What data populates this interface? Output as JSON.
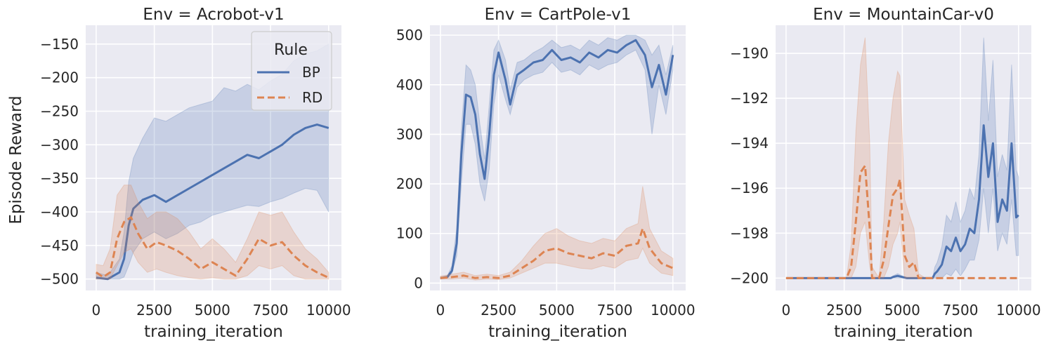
{
  "figure": {
    "ylabel": "Episode Reward",
    "legend": {
      "title": "Rule",
      "placement": "top-right of first panel",
      "entries": [
        {
          "label": "BP",
          "color": "#4c72b0",
          "dash": "solid"
        },
        {
          "label": "RD",
          "color": "#dd8452",
          "dash": "dashed"
        }
      ]
    },
    "colors": {
      "BP": "#4c72b0",
      "RD": "#dd8452",
      "background": "#eaeaf2",
      "grid": "#ffffff"
    }
  },
  "chart_data": [
    {
      "type": "line",
      "title": "Env = Acrobot-v1",
      "xlabel": "training_iteration",
      "ylabel": "Episode Reward",
      "xlim": [
        -450,
        10550
      ],
      "ylim": [
        -517,
        -122
      ],
      "xticks": [
        0,
        2500,
        5000,
        7500,
        10000
      ],
      "yticks": [
        -500,
        -450,
        -400,
        -350,
        -300,
        -250,
        -200,
        -150
      ],
      "xtick_labels": [
        "0",
        "2500",
        "5000",
        "7500",
        "10000"
      ],
      "ytick_labels": [
        "−500",
        "−450",
        "−400",
        "−350",
        "−300",
        "−250",
        "−200",
        "−150"
      ],
      "grid": true,
      "legend": "top-right",
      "series": [
        {
          "name": "BP",
          "x": [
            0,
            500,
            1000,
            1200,
            1400,
            1600,
            2000,
            2500,
            3000,
            3500,
            4000,
            4500,
            5000,
            5500,
            6000,
            6500,
            7000,
            7500,
            8000,
            8500,
            9000,
            9500,
            10000
          ],
          "y": [
            -498,
            -500,
            -490,
            -470,
            -420,
            -395,
            -382,
            -375,
            -385,
            -375,
            -365,
            -355,
            -345,
            -335,
            -325,
            -315,
            -320,
            -310,
            -300,
            -285,
            -275,
            -270,
            -275
          ],
          "band_low": [
            -500,
            -500,
            -500,
            -497,
            -480,
            -460,
            -440,
            -430,
            -440,
            -432,
            -420,
            -415,
            -405,
            -400,
            -395,
            -390,
            -392,
            -385,
            -380,
            -372,
            -365,
            -368,
            -400
          ],
          "band_high": [
            -490,
            -495,
            -470,
            -430,
            -355,
            -320,
            -290,
            -260,
            -265,
            -255,
            -245,
            -240,
            -235,
            -215,
            -220,
            -210,
            -218,
            -205,
            -195,
            -175,
            -165,
            -160,
            -150
          ]
        },
        {
          "name": "RD",
          "x": [
            0,
            300,
            600,
            900,
            1200,
            1500,
            1800,
            2200,
            2600,
            3000,
            3500,
            4000,
            4500,
            5000,
            5500,
            6000,
            6500,
            7000,
            7500,
            8000,
            8500,
            9000,
            9500,
            10000
          ],
          "y": [
            -490,
            -497,
            -490,
            -440,
            -415,
            -408,
            -432,
            -455,
            -445,
            -450,
            -458,
            -470,
            -485,
            -475,
            -485,
            -495,
            -470,
            -440,
            -450,
            -445,
            -465,
            -480,
            -490,
            -498
          ],
          "band_low": [
            -500,
            -500,
            -500,
            -480,
            -460,
            -455,
            -475,
            -490,
            -485,
            -490,
            -495,
            -498,
            -500,
            -498,
            -500,
            -500,
            -495,
            -480,
            -485,
            -480,
            -495,
            -500,
            -500,
            -500
          ],
          "band_high": [
            -478,
            -480,
            -455,
            -375,
            -360,
            -360,
            -385,
            -410,
            -400,
            -400,
            -410,
            -430,
            -455,
            -440,
            -455,
            -475,
            -440,
            -400,
            -405,
            -400,
            -430,
            -455,
            -470,
            -490
          ]
        }
      ]
    },
    {
      "type": "line",
      "title": "Env = CartPole-v1",
      "xlabel": "training_iteration",
      "ylabel": "",
      "xlim": [
        -450,
        10550
      ],
      "ylim": [
        -15,
        520
      ],
      "xticks": [
        0,
        2500,
        5000,
        7500,
        10000
      ],
      "yticks": [
        0,
        100,
        200,
        300,
        400,
        500
      ],
      "xtick_labels": [
        "0",
        "2500",
        "5000",
        "7500",
        "10000"
      ],
      "ytick_labels": [
        "0",
        "100",
        "200",
        "300",
        "400",
        "500"
      ],
      "grid": true,
      "series": [
        {
          "name": "BP",
          "x": [
            0,
            300,
            500,
            700,
            900,
            1100,
            1300,
            1500,
            1700,
            1900,
            2100,
            2300,
            2500,
            2800,
            3000,
            3300,
            3600,
            4000,
            4400,
            4800,
            5200,
            5600,
            6000,
            6400,
            6800,
            7200,
            7600,
            8000,
            8400,
            8800,
            9100,
            9400,
            9700,
            10000
          ],
          "y": [
            10,
            12,
            25,
            80,
            260,
            380,
            375,
            340,
            260,
            210,
            300,
            420,
            465,
            410,
            360,
            420,
            430,
            445,
            450,
            470,
            450,
            455,
            445,
            465,
            455,
            470,
            465,
            480,
            490,
            460,
            395,
            440,
            380,
            460
          ],
          "band_low": [
            8,
            10,
            20,
            55,
            200,
            320,
            320,
            280,
            200,
            165,
            230,
            360,
            420,
            370,
            340,
            395,
            410,
            420,
            425,
            445,
            425,
            430,
            420,
            440,
            430,
            440,
            445,
            460,
            470,
            430,
            300,
            400,
            340,
            430
          ],
          "band_high": [
            12,
            15,
            35,
            110,
            310,
            440,
            430,
            400,
            320,
            250,
            360,
            470,
            490,
            450,
            390,
            445,
            450,
            465,
            475,
            490,
            475,
            480,
            470,
            490,
            480,
            495,
            490,
            500,
            500,
            490,
            460,
            480,
            420,
            480
          ]
        },
        {
          "name": "RD",
          "x": [
            0,
            500,
            1000,
            1500,
            2000,
            2500,
            3000,
            3500,
            4000,
            4500,
            5000,
            5500,
            6000,
            6500,
            7000,
            7500,
            8000,
            8500,
            8700,
            9000,
            9500,
            10000
          ],
          "y": [
            10,
            12,
            15,
            10,
            12,
            10,
            15,
            30,
            45,
            65,
            70,
            60,
            55,
            50,
            60,
            55,
            75,
            80,
            110,
            70,
            40,
            30
          ],
          "band_low": [
            8,
            8,
            10,
            6,
            8,
            7,
            10,
            20,
            30,
            40,
            40,
            35,
            30,
            28,
            35,
            30,
            45,
            50,
            70,
            40,
            20,
            15
          ],
          "band_high": [
            14,
            18,
            22,
            15,
            18,
            15,
            22,
            45,
            75,
            100,
            110,
            95,
            85,
            80,
            90,
            85,
            110,
            120,
            195,
            110,
            65,
            50
          ]
        }
      ]
    },
    {
      "type": "line",
      "title": "Env = MountainCar-v0",
      "xlabel": "training_iteration",
      "ylabel": "",
      "xlim": [
        -450,
        10550
      ],
      "ylim": [
        -200.55,
        -188.75
      ],
      "xticks": [
        0,
        2500,
        5000,
        7500,
        10000
      ],
      "yticks": [
        -200,
        -198,
        -196,
        -194,
        -192,
        -190
      ],
      "xtick_labels": [
        "0",
        "2500",
        "5000",
        "7500",
        "10000"
      ],
      "ytick_labels": [
        "−200",
        "−198",
        "−196",
        "−194",
        "−192",
        "−190"
      ],
      "grid": true,
      "series": [
        {
          "name": "BP",
          "x": [
            0,
            4500,
            4600,
            4800,
            5000,
            5200,
            6300,
            6400,
            6500,
            6700,
            6900,
            7100,
            7300,
            7500,
            7700,
            7900,
            8100,
            8300,
            8500,
            8700,
            8900,
            9100,
            9300,
            9500,
            9700,
            9900,
            10000
          ],
          "y": [
            -200,
            -200,
            -199.95,
            -199.9,
            -199.95,
            -200,
            -200,
            -199.8,
            -199.7,
            -199.4,
            -198.6,
            -198.8,
            -198.2,
            -198.8,
            -198.5,
            -197.8,
            -198.0,
            -196.5,
            -193.2,
            -195.5,
            -194.0,
            -197.5,
            -196.5,
            -197.0,
            -194.0,
            -197.3,
            -197.2
          ],
          "band_low": [
            -200,
            -200,
            -200,
            -200,
            -200,
            -200,
            -200,
            -200,
            -200,
            -200,
            -199.8,
            -199.9,
            -199.6,
            -199.9,
            -199.6,
            -199.2,
            -199.2,
            -198.3,
            -196.0,
            -198.0,
            -196.0,
            -198.8,
            -198.0,
            -198.5,
            -196.5,
            -199.0,
            -199.0
          ],
          "band_high": [
            -200,
            -200,
            -199.9,
            -199.8,
            -199.9,
            -200,
            -200,
            -199.5,
            -199.3,
            -198.6,
            -197.2,
            -197.5,
            -196.6,
            -197.5,
            -197.0,
            -196.0,
            -196.5,
            -194.5,
            -189.3,
            -193.0,
            -190.3,
            -195.5,
            -194.5,
            -195.2,
            -190.5,
            -195.2,
            -195.5
          ]
        },
        {
          "name": "RD",
          "x": [
            0,
            2600,
            2800,
            3000,
            3200,
            3400,
            3600,
            3700,
            4000,
            4200,
            4400,
            4600,
            4800,
            4900,
            5100,
            5300,
            5500,
            5700,
            6000,
            10000
          ],
          "y": [
            -200,
            -200,
            -199.5,
            -197.5,
            -195.3,
            -195.0,
            -197.8,
            -200,
            -200,
            -199.2,
            -197.7,
            -196.3,
            -196.0,
            -195.6,
            -199.0,
            -199.5,
            -199.3,
            -200,
            -200,
            -200
          ],
          "band_low": [
            -200,
            -200,
            -200,
            -199.5,
            -198.0,
            -197.5,
            -199.5,
            -200,
            -200,
            -200,
            -199.5,
            -198.5,
            -198.0,
            -197.5,
            -200,
            -200,
            -200,
            -200,
            -200,
            -200
          ],
          "band_high": [
            -200,
            -200,
            -198.5,
            -193.5,
            -190.5,
            -189.3,
            -194.0,
            -199.5,
            -200,
            -197.5,
            -194.0,
            -192.0,
            -190.8,
            -191.0,
            -196.5,
            -197.2,
            -197.8,
            -199.8,
            -200,
            -200
          ]
        }
      ]
    }
  ]
}
